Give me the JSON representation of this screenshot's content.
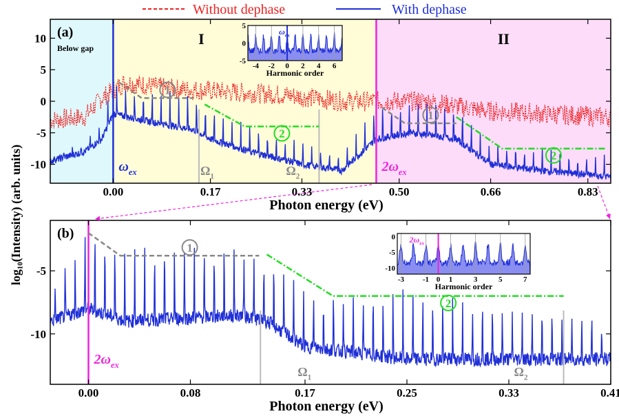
{
  "legend": [
    {
      "label": "Without dephase",
      "color": "#ee2222",
      "style": "dashed"
    },
    {
      "label": "With dephase",
      "color": "#1f2fd6",
      "style": "solid"
    }
  ],
  "shared_ylabel": "log10(Intensity) (arb. units)",
  "colors": {
    "red": "#ee2222",
    "blue": "#1f2fd6",
    "magenta": "#ee22dd",
    "green": "#22dd22",
    "gray": "#888888",
    "gray_line": "#bbbbbb",
    "cyan_bg": "#dff8fb",
    "yellow_bg": "#fffcd8",
    "pink_bg": "#fddcfa",
    "inset_fill": "#8a8ef0"
  },
  "chart_data": [
    {
      "type": "line",
      "panel_label": "(a)",
      "xlabel": "Photon energy (eV)",
      "xlim": [
        -0.11,
        0.87
      ],
      "ylim": [
        -13,
        13
      ],
      "xticks": [
        0.0,
        0.17,
        0.33,
        0.5,
        0.66,
        0.83
      ],
      "xtick_labels": [
        "0.00",
        "0.17",
        "0.33",
        "0.50",
        "0.66",
        "0.83"
      ],
      "yticks": [
        10,
        5,
        0,
        -5,
        -10
      ],
      "ytick_labels": [
        "10",
        "5",
        "0",
        "-5",
        "-10"
      ],
      "regions": [
        {
          "label": "Below gap",
          "x": [
            -0.11,
            0.0
          ],
          "color": "cyan"
        },
        {
          "label": "I",
          "x": [
            0.0,
            0.46
          ],
          "color": "yellow"
        },
        {
          "label": "II",
          "x": [
            0.46,
            0.87
          ],
          "color": "pink"
        }
      ],
      "markers": [
        {
          "label": "ω",
          "sub": "ex",
          "x": 0.0,
          "color": "blue"
        },
        {
          "label": "2ω",
          "sub": "ex",
          "x": 0.46,
          "color": "magenta"
        },
        {
          "label": "Ω",
          "sub": "1",
          "x": 0.15,
          "color": "gray"
        },
        {
          "label": "Ω",
          "sub": "2",
          "x": 0.36,
          "color": "gray"
        }
      ],
      "series": [
        {
          "name": "Without dephase",
          "envelope": [
            [
              -0.11,
              -3
            ],
            [
              -0.05,
              -2.5
            ],
            [
              -0.02,
              0.5
            ],
            [
              0.02,
              3
            ],
            [
              0.1,
              2
            ],
            [
              0.2,
              1.5
            ],
            [
              0.3,
              1
            ],
            [
              0.4,
              0
            ],
            [
              0.46,
              0
            ],
            [
              0.55,
              0
            ],
            [
              0.65,
              -1.5
            ],
            [
              0.75,
              -2
            ],
            [
              0.87,
              -2.5
            ]
          ],
          "spacing": 0.006
        },
        {
          "name": "With dephase",
          "envelope": [
            [
              -0.11,
              -9.5
            ],
            [
              -0.05,
              -8
            ],
            [
              -0.02,
              -6
            ],
            [
              0.0,
              -2
            ],
            [
              0.05,
              -3
            ],
            [
              0.14,
              -4.5
            ],
            [
              0.17,
              -6
            ],
            [
              0.24,
              -8
            ],
            [
              0.33,
              -10
            ],
            [
              0.4,
              -11
            ],
            [
              0.46,
              -6
            ],
            [
              0.52,
              -5
            ],
            [
              0.6,
              -6
            ],
            [
              0.66,
              -10
            ],
            [
              0.75,
              -11
            ],
            [
              0.87,
              -12
            ]
          ],
          "peak_height": [
            [
              -0.11,
              0.5
            ],
            [
              -0.02,
              2
            ],
            [
              0.0,
              5
            ],
            [
              0.14,
              5
            ],
            [
              0.2,
              4
            ],
            [
              0.33,
              3
            ],
            [
              0.4,
              3
            ],
            [
              0.46,
              5
            ],
            [
              0.6,
              5
            ],
            [
              0.66,
              3
            ],
            [
              0.87,
              3
            ]
          ],
          "spacing": 0.0155
        }
      ],
      "plateau_guides": [
        {
          "label": "1",
          "points": [
            [
              0.01,
              3
            ],
            [
              0.05,
              0.5
            ],
            [
              0.14,
              0.5
            ]
          ],
          "color": "gray",
          "style": "dashed"
        },
        {
          "label": "2",
          "points": [
            [
              0.16,
              -0.5
            ],
            [
              0.23,
              -4
            ],
            [
              0.36,
              -4
            ]
          ],
          "color": "green",
          "style": "dashdot"
        },
        {
          "label": "1",
          "points": [
            [
              0.47,
              -1
            ],
            [
              0.51,
              -3.5
            ],
            [
              0.6,
              -3.5
            ]
          ],
          "color": "gray",
          "style": "dashed"
        },
        {
          "label": "2",
          "points": [
            [
              0.6,
              -2.5
            ],
            [
              0.68,
              -7.5
            ],
            [
              0.86,
              -7.5
            ]
          ],
          "color": "green",
          "style": "dashdot"
        }
      ],
      "inset": {
        "xlabel": "Harmonic order",
        "xlim": [
          -5,
          7
        ],
        "ylim": [
          -5,
          5
        ],
        "xticks": [
          -4,
          -2,
          0,
          2,
          4,
          6
        ],
        "xtick_labels": [
          "-4",
          "-2",
          "0",
          "2",
          "4",
          "6"
        ],
        "yticks": [
          5,
          0,
          -5
        ],
        "ytick_labels": [
          "5",
          "0",
          "-5"
        ],
        "marker": {
          "label": "ω",
          "sub": "ex",
          "x": 0,
          "color": "blue"
        }
      }
    },
    {
      "type": "line",
      "panel_label": "(b)",
      "xlabel": "Photon energy (eV)",
      "xlim": [
        -0.03,
        0.41
      ],
      "ylim": [
        -14,
        -1
      ],
      "xticks": [
        0.0,
        0.08,
        0.17,
        0.25,
        0.33,
        0.41
      ],
      "xtick_labels": [
        "0.00",
        "0.08",
        "0.17",
        "0.25",
        "0.33",
        "0.41"
      ],
      "yticks": [
        -5,
        -10
      ],
      "ytick_labels": [
        "-5",
        "-10"
      ],
      "markers": [
        {
          "label": "2ω",
          "sub": "ex",
          "x": 0.0,
          "color": "magenta"
        },
        {
          "label": "Ω",
          "sub": "1",
          "x": 0.135,
          "color": "gray"
        },
        {
          "label": "Ω",
          "sub": "2",
          "x": 0.373,
          "color": "gray"
        }
      ],
      "series": [
        {
          "name": "With dephase",
          "envelope": [
            [
              -0.03,
              -9
            ],
            [
              0.0,
              -8
            ],
            [
              0.03,
              -9
            ],
            [
              0.12,
              -8.5
            ],
            [
              0.14,
              -9
            ],
            [
              0.17,
              -11
            ],
            [
              0.25,
              -12
            ],
            [
              0.33,
              -12
            ],
            [
              0.41,
              -12
            ]
          ],
          "peak_height": [
            [
              -0.03,
              2
            ],
            [
              0.0,
              6
            ],
            [
              0.12,
              5
            ],
            [
              0.17,
              4
            ],
            [
              0.25,
              5
            ],
            [
              0.33,
              4
            ],
            [
              0.41,
              3
            ]
          ],
          "spacing": 0.0078
        }
      ],
      "plateau_guides": [
        {
          "label": "1",
          "points": [
            [
              0.0,
              -2
            ],
            [
              0.025,
              -3.8
            ],
            [
              0.134,
              -3.8
            ]
          ],
          "color": "gray",
          "style": "dashed"
        },
        {
          "label": "2",
          "points": [
            [
              0.14,
              -3.7
            ],
            [
              0.192,
              -7
            ],
            [
              0.373,
              -7
            ]
          ],
          "color": "green",
          "style": "dashdot"
        }
      ],
      "inset": {
        "xlabel": "Harmonic order",
        "xlim": [
          -3.3,
          7.4
        ],
        "ylim": [
          -12,
          1
        ],
        "xticks": [
          -3,
          -1,
          0,
          1,
          3,
          5,
          7
        ],
        "xtick_labels": [
          "-3",
          "-1",
          "0",
          "1",
          "3",
          "5",
          "7"
        ],
        "yticks": [
          0,
          -5,
          -10
        ],
        "ytick_labels": [
          "0",
          "-5",
          "-10"
        ],
        "marker": {
          "label": "2ω",
          "sub": "ex",
          "x": 0,
          "color": "magenta"
        }
      }
    }
  ]
}
